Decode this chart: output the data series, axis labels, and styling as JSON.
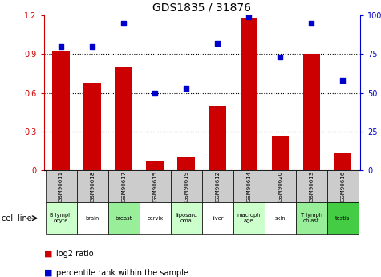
{
  "title": "GDS1835 / 31876",
  "samples": [
    "GSM90611",
    "GSM90618",
    "GSM90617",
    "GSM90615",
    "GSM90619",
    "GSM90612",
    "GSM90614",
    "GSM90620",
    "GSM90613",
    "GSM90616"
  ],
  "cell_lines": [
    "B lymph\nocyte",
    "brain",
    "breast",
    "cervix",
    "liposarc\noma",
    "liver",
    "macroph\nage",
    "skin",
    "T lymph\noblast",
    "testis"
  ],
  "cell_line_colors": [
    "#ccffcc",
    "#ffffff",
    "#99ee99",
    "#ffffff",
    "#ccffcc",
    "#ffffff",
    "#ccffcc",
    "#ffffff",
    "#99ee99",
    "#44cc44"
  ],
  "log2_ratio": [
    0.92,
    0.68,
    0.8,
    0.07,
    0.1,
    0.5,
    1.18,
    0.26,
    0.9,
    0.13
  ],
  "percentile_rank": [
    80,
    80,
    95,
    50,
    53,
    82,
    99,
    73,
    95,
    58
  ],
  "bar_color": "#cc0000",
  "dot_color": "#0000cc",
  "left_ylim": [
    0,
    1.2
  ],
  "right_ylim": [
    0,
    100
  ],
  "left_yticks": [
    0,
    0.3,
    0.6,
    0.9,
    1.2
  ],
  "right_yticks": [
    0,
    25,
    50,
    75,
    100
  ],
  "left_yticklabels": [
    "0",
    "0.3",
    "0.6",
    "0.9",
    "1.2"
  ],
  "right_yticklabels": [
    "0",
    "25",
    "50",
    "75",
    "100%"
  ],
  "left_tick_color": "#cc0000",
  "right_tick_color": "#0000cc",
  "sample_bg_color": "#cccccc",
  "legend_red_label": "log2 ratio",
  "legend_blue_label": "percentile rank within the sample",
  "cell_line_label": "cell line"
}
